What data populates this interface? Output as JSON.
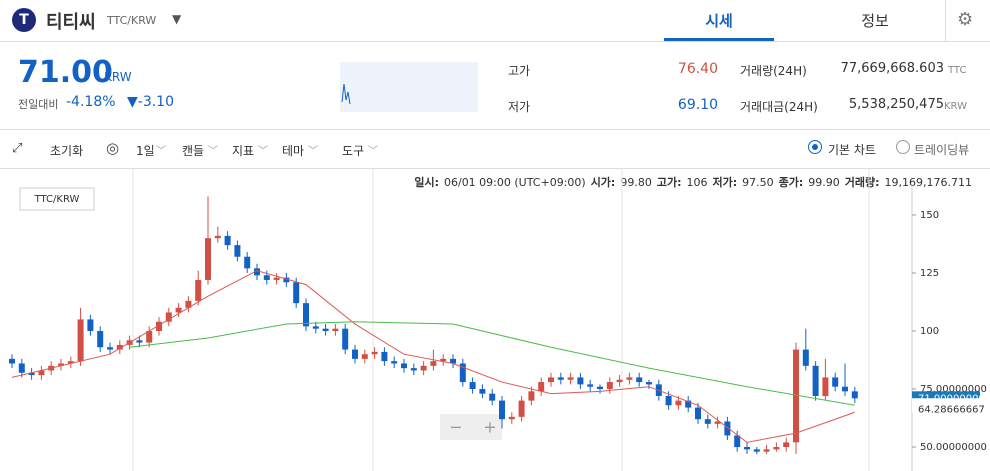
{
  "header": {
    "name": "티티씨",
    "pair": "TTC/KRW",
    "tabs": [
      "시세",
      "정보"
    ]
  },
  "price": {
    "value": "71.00",
    "unit": "KRW",
    "change_label": "전일대비",
    "change_pct": "-4.18%",
    "change_abs": "▼-3.10"
  },
  "stats": {
    "high_label": "고가",
    "high": "76.40",
    "low_label": "저가",
    "low": "69.10",
    "volume_label": "거래량(24H)",
    "volume": "77,669,668.603",
    "volume_unit": "TTC",
    "amount_label": "거래대금(24H)",
    "amount": "5,538,250,475",
    "amount_unit": "KRW"
  },
  "toolbar": {
    "reset": "초기화",
    "items": [
      "1일",
      "캔들",
      "지표",
      "테마",
      "도구"
    ],
    "modes": [
      "기본 차트",
      "트레이딩뷰"
    ]
  },
  "info": [
    "일시:",
    "06/01 09:00 (UTC+09:00)",
    "시가:",
    "99.80",
    "고가:",
    "106",
    "저가:",
    "97.50",
    "종가:",
    "99.90",
    "거래량:",
    "19,169,176.711"
  ],
  "chart_data": {
    "type": "candlestick",
    "legend": "TTC/KRW",
    "up_color": "#d24f45",
    "down_color": "#1261c4",
    "open": [
      88,
      86,
      82,
      81,
      83,
      85,
      86,
      87,
      105,
      100,
      93,
      92,
      94,
      96,
      95,
      100,
      104,
      108,
      110,
      113,
      122,
      140,
      141,
      137,
      132,
      127,
      124,
      122,
      123,
      121,
      112,
      102,
      101,
      100,
      101,
      92,
      88,
      90,
      91,
      87,
      86,
      84,
      83,
      85,
      87,
      88,
      86,
      78,
      75,
      73,
      70,
      62,
      63,
      70,
      74,
      78,
      80,
      79,
      80,
      77,
      76,
      75,
      78,
      79,
      80,
      78,
      77,
      72,
      68,
      70,
      67,
      62,
      60,
      61,
      55,
      50,
      49,
      48,
      49,
      50,
      52,
      92,
      85,
      72,
      80,
      76,
      74
    ],
    "high": [
      90,
      88,
      84,
      85,
      87,
      88,
      89,
      110,
      107,
      102,
      95,
      96,
      98,
      98,
      102,
      106,
      110,
      112,
      115,
      126,
      158,
      145,
      143,
      139,
      134,
      129,
      126,
      125,
      125,
      123,
      114,
      104,
      103,
      103,
      103,
      94,
      92,
      93,
      93,
      89,
      88,
      86,
      87,
      92,
      90,
      90,
      88,
      80,
      77,
      75,
      72,
      65,
      72,
      76,
      80,
      82,
      82,
      82,
      82,
      79,
      77,
      80,
      81,
      82,
      82,
      79,
      79,
      74,
      72,
      72,
      69,
      64,
      63,
      63,
      57,
      52,
      50,
      51,
      52,
      54,
      95,
      101,
      87,
      88,
      82,
      86,
      76
    ],
    "low": [
      84,
      80,
      79,
      79,
      81,
      83,
      84,
      85,
      98,
      91,
      90,
      90,
      92,
      93,
      93,
      98,
      102,
      106,
      108,
      111,
      120,
      138,
      135,
      130,
      125,
      122,
      120,
      120,
      119,
      110,
      100,
      99,
      98,
      98,
      90,
      86,
      86,
      88,
      85,
      84,
      82,
      81,
      81,
      83,
      85,
      84,
      76,
      73,
      71,
      68,
      58,
      60,
      61,
      68,
      72,
      76,
      77,
      77,
      75,
      74,
      73,
      73,
      76,
      77,
      76,
      75,
      70,
      66,
      66,
      65,
      60,
      58,
      58,
      53,
      48,
      47,
      47,
      47,
      48,
      48,
      47,
      83,
      70,
      70,
      74,
      72,
      69
    ],
    "close": [
      86,
      82,
      81,
      83,
      85,
      86,
      87,
      105,
      100,
      93,
      92,
      94,
      96,
      95,
      100,
      104,
      108,
      110,
      113,
      122,
      140,
      141,
      137,
      132,
      127,
      124,
      122,
      123,
      121,
      112,
      102,
      101,
      100,
      101,
      92,
      88,
      90,
      91,
      87,
      86,
      84,
      83,
      85,
      87,
      88,
      86,
      78,
      75,
      73,
      70,
      62,
      63,
      70,
      74,
      78,
      80,
      79,
      80,
      77,
      76,
      75,
      78,
      79,
      80,
      78,
      77,
      72,
      68,
      70,
      67,
      62,
      60,
      61,
      55,
      50,
      49,
      48,
      49,
      50,
      52,
      92,
      85,
      72,
      80,
      76,
      74,
      71
    ],
    "lines": [
      {
        "color": "#e0584f",
        "x": [
          0,
          10,
          20,
          25,
          30,
          35,
          40,
          45,
          50,
          55,
          60,
          65,
          70,
          75,
          80,
          86
        ],
        "values": [
          80,
          90,
          115,
          126,
          120,
          103,
          90,
          86,
          78,
          73,
          74,
          76,
          68,
          52,
          56,
          65
        ]
      },
      {
        "color": "#4cba4c",
        "x": [
          12,
          20,
          28,
          35,
          45,
          55,
          65,
          75,
          86
        ],
        "values": [
          93,
          97,
          103,
          104,
          103,
          93,
          84,
          76,
          68
        ]
      }
    ],
    "ylim": [
      42,
      163
    ],
    "yticks": [
      150,
      125,
      100,
      {
        "value": 75,
        "label": "75.00000000"
      },
      {
        "value": 50,
        "label": "50.00000000"
      }
    ],
    "last_label": "71.00000000",
    "ma_label": "64.28666667"
  }
}
